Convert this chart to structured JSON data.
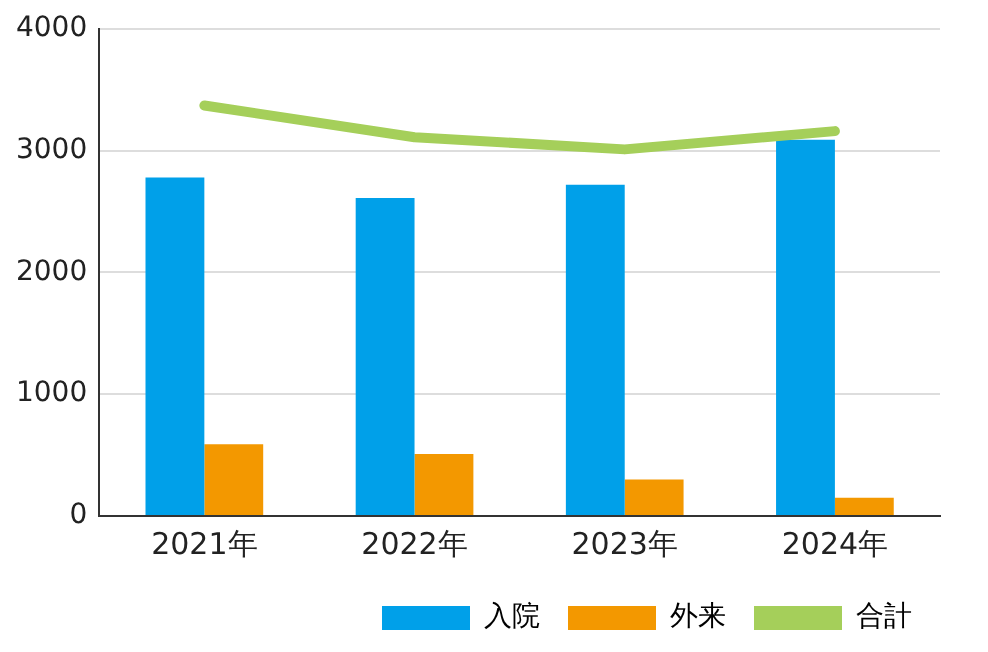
{
  "chart_data": {
    "type": "bar",
    "categories": [
      "2021年",
      "2022年",
      "2023年",
      "2024年"
    ],
    "series": [
      {
        "name": "入院",
        "color": "#00a0e9",
        "values": [
          2780,
          2610,
          2720,
          3090
        ]
      },
      {
        "name": "外来",
        "color": "#f39800",
        "values": [
          590,
          510,
          300,
          150
        ]
      },
      {
        "name": "合計",
        "type": "line",
        "color": "#a5cf5a",
        "values": [
          3370,
          3110,
          3010,
          3160
        ]
      }
    ],
    "ylim": [
      0,
      4000
    ],
    "yticks": [
      0,
      1000,
      2000,
      3000,
      4000
    ],
    "grid": "y",
    "legend": "bottom right",
    "marker": "none"
  }
}
